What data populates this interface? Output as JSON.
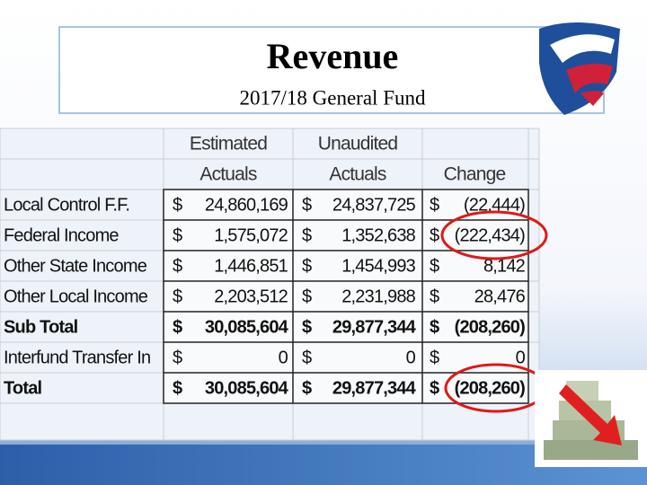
{
  "header": {
    "title": "Revenue",
    "subtitle": "2017/18 General Fund"
  },
  "table": {
    "columns": [
      [
        "Estimated",
        "Actuals"
      ],
      [
        "Unaudited",
        "Actuals"
      ],
      [
        "Change"
      ]
    ],
    "rows": [
      {
        "cells": [
          "Local Control F.F.",
          "$",
          "24,860,169",
          "$",
          "24,837,725",
          "$",
          "(22,444)"
        ],
        "bold": false
      },
      {
        "cells": [
          "Federal Income",
          "$",
          "1,575,072",
          "$",
          "1,352,638",
          "$",
          "(222,434)"
        ],
        "bold": false
      },
      {
        "cells": [
          "Other State Income",
          "$",
          "1,446,851",
          "$",
          "1,454,993",
          "$",
          "8,142"
        ],
        "bold": false
      },
      {
        "cells": [
          "Other Local Income",
          "$",
          "2,203,512",
          "$",
          "2,231,988",
          "$",
          "28,476"
        ],
        "bold": false
      },
      {
        "cells": [
          "Sub Total",
          "$",
          "30,085,604",
          "$",
          "29,877,344",
          "$",
          "(208,260)"
        ],
        "bold": true
      },
      {
        "cells": [
          "Interfund Transfer In",
          "$",
          "0",
          "$",
          "0",
          "$",
          "0"
        ],
        "bold": false
      },
      {
        "cells": [
          "Total",
          "$",
          "30,085,604",
          "$",
          "29,877,344",
          "$",
          "(208,260)"
        ],
        "bold": true
      }
    ]
  }
}
